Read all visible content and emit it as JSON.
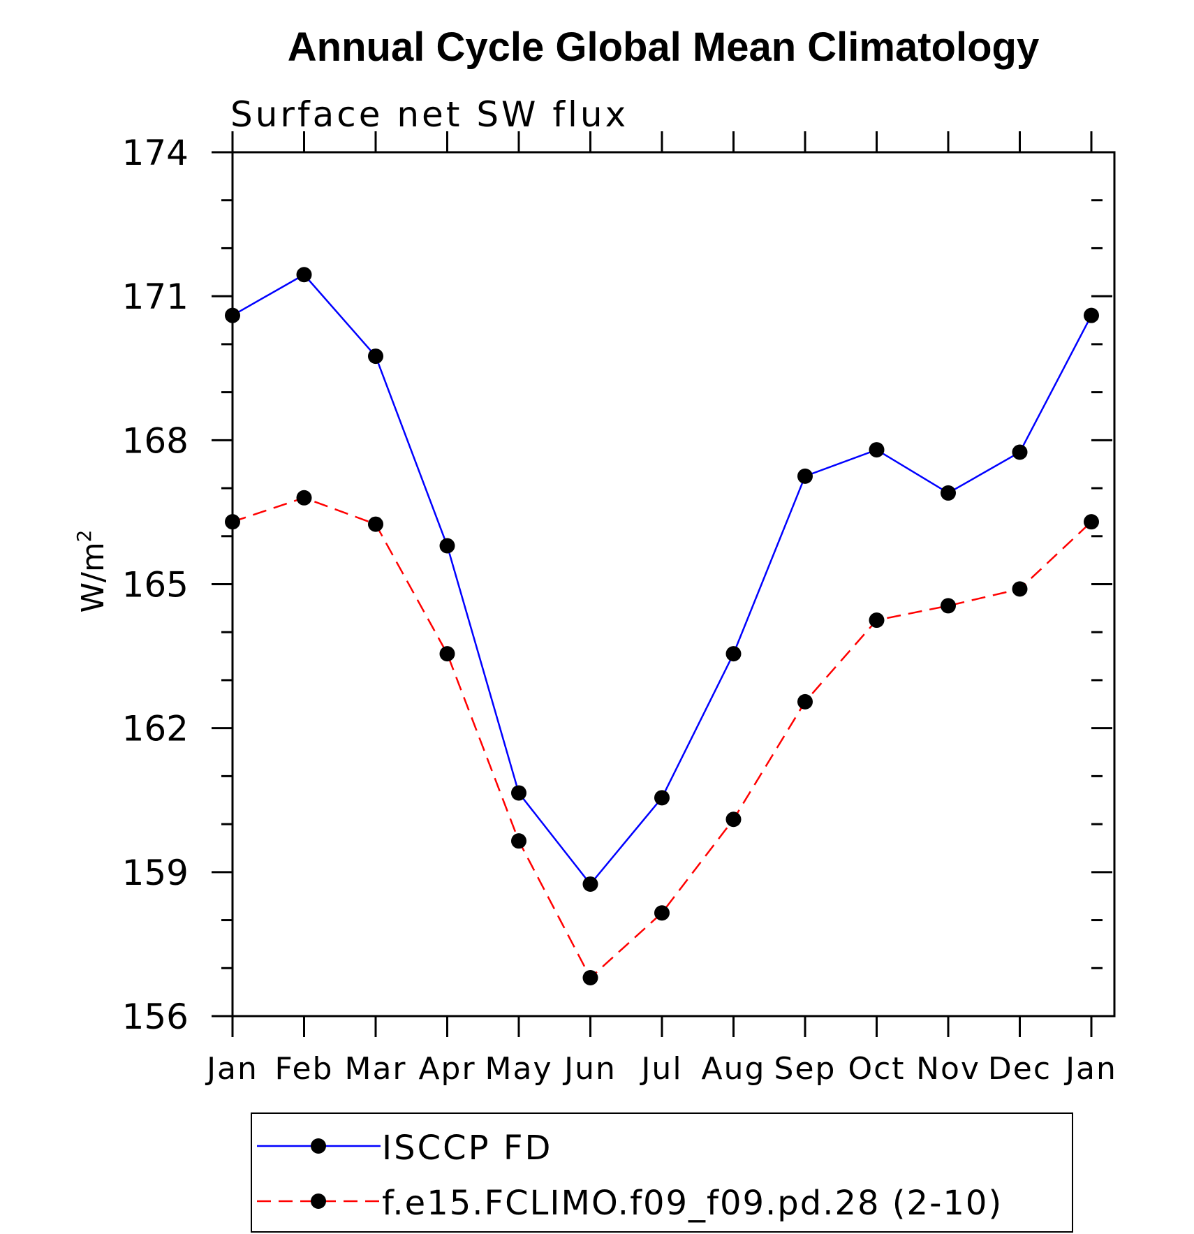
{
  "chart_data": {
    "type": "line",
    "title": "Annual Cycle Global Mean Climatology",
    "subtitle": "Surface net SW flux",
    "xlabel": "",
    "ylabel": "W/m",
    "ylabel_superscript": "2",
    "categories": [
      "Jan",
      "Feb",
      "Mar",
      "Apr",
      "May",
      "Jun",
      "Jul",
      "Aug",
      "Sep",
      "Oct",
      "Nov",
      "Dec",
      "Jan"
    ],
    "ylim": [
      156,
      174
    ],
    "yticks": [
      "156",
      "159",
      "162",
      "165",
      "168",
      "171",
      "174"
    ],
    "grid": false,
    "legend_position": "bottom",
    "series": [
      {
        "name": "ISCCP FD",
        "color": "#0000ff",
        "line_style": "solid",
        "marker": "filled-circle",
        "values": [
          170.6,
          171.45,
          169.75,
          165.8,
          160.65,
          158.75,
          160.55,
          163.55,
          167.25,
          167.8,
          166.9,
          167.75,
          170.6
        ]
      },
      {
        "name": "f.e15.FCLIMO.f09_f09.pd.28 (2-10)",
        "color": "#ff0000",
        "line_style": "dashed",
        "marker": "filled-circle",
        "values": [
          166.3,
          166.8,
          166.25,
          163.55,
          159.65,
          156.8,
          158.15,
          160.1,
          162.55,
          164.25,
          164.55,
          164.9,
          166.3
        ]
      }
    ]
  }
}
